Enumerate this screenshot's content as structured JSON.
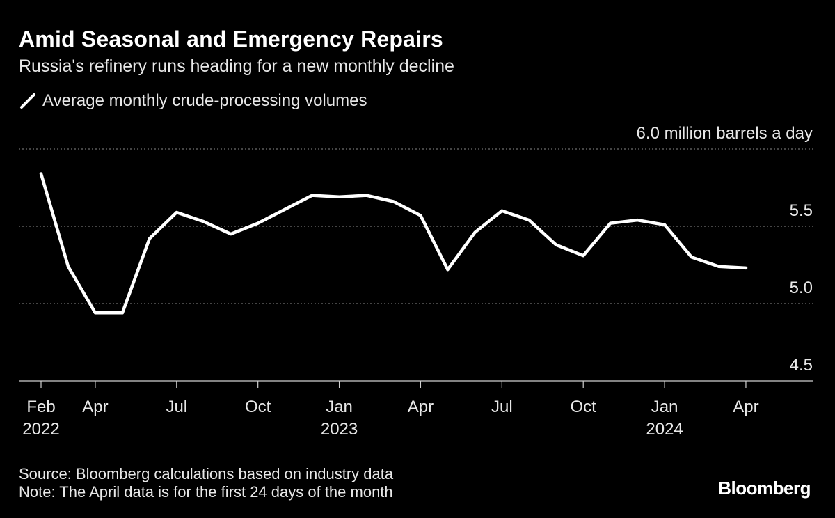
{
  "chart_data": {
    "type": "line",
    "title": "Amid Seasonal and Emergency Repairs",
    "subtitle": "Russia's refinery runs heading for a new monthly decline",
    "ylabel": "6.0 million barrels a day",
    "ylim": [
      4.5,
      6.0
    ],
    "yticks": [
      4.5,
      5.0,
      5.5,
      6.0
    ],
    "ytick_labels": [
      "4.5",
      "5.0",
      "5.5",
      "6.0 million barrels a day"
    ],
    "grid": true,
    "legend_position": "top-left",
    "series": [
      {
        "name": "Average monthly crude-processing volumes",
        "color": "#ffffff",
        "x": [
          "2022-02",
          "2022-03",
          "2022-04",
          "2022-05",
          "2022-06",
          "2022-07",
          "2022-08",
          "2022-09",
          "2022-10",
          "2022-11",
          "2022-12",
          "2023-01",
          "2023-02",
          "2023-03",
          "2023-04",
          "2023-05",
          "2023-06",
          "2023-07",
          "2023-08",
          "2023-09",
          "2023-10",
          "2023-11",
          "2023-12",
          "2024-01",
          "2024-02",
          "2024-03",
          "2024-04"
        ],
        "values": [
          5.84,
          5.24,
          4.94,
          4.94,
          5.42,
          5.59,
          5.53,
          5.45,
          5.52,
          5.61,
          5.7,
          5.69,
          5.7,
          5.66,
          5.57,
          5.22,
          5.46,
          5.6,
          5.54,
          5.38,
          5.31,
          5.52,
          5.54,
          5.51,
          5.3,
          5.24,
          5.23
        ]
      }
    ],
    "xticks": [
      {
        "x": "2022-02",
        "label": "Feb",
        "year": "2022"
      },
      {
        "x": "2022-04",
        "label": "Apr",
        "year": ""
      },
      {
        "x": "2022-07",
        "label": "Jul",
        "year": ""
      },
      {
        "x": "2022-10",
        "label": "Oct",
        "year": ""
      },
      {
        "x": "2023-01",
        "label": "Jan",
        "year": "2023"
      },
      {
        "x": "2023-04",
        "label": "Apr",
        "year": ""
      },
      {
        "x": "2023-07",
        "label": "Jul",
        "year": ""
      },
      {
        "x": "2023-10",
        "label": "Oct",
        "year": ""
      },
      {
        "x": "2024-01",
        "label": "Jan",
        "year": "2024"
      },
      {
        "x": "2024-04",
        "label": "Apr",
        "year": ""
      }
    ]
  },
  "footer": {
    "source": "Source: Bloomberg calculations based on industry data",
    "note": "Note: The April data is for the first 24 days of the month"
  },
  "brand": "Bloomberg"
}
